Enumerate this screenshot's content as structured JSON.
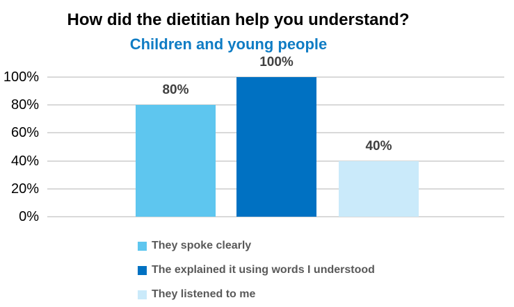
{
  "chart_data": {
    "type": "bar",
    "title": "How did the dietitian help you understand?",
    "subtitle": "Children and young people",
    "categories": [
      "They spoke clearly",
      "The explained it using words I understood",
      "They listened to me"
    ],
    "values": [
      80,
      100,
      40
    ],
    "data_labels": [
      "80%",
      "100%",
      "40%"
    ],
    "bar_colors": [
      "#5EC6EF",
      "#0071C2",
      "#CAEAFA"
    ],
    "y_ticks": [
      "0%",
      "20%",
      "40%",
      "60%",
      "80%",
      "100%"
    ],
    "ylim": [
      0,
      100
    ],
    "grid": true,
    "legend_position": "bottom-left",
    "xlabel": "",
    "ylabel": ""
  },
  "style": {
    "background": "#FFFFFF",
    "title_color": "#000000",
    "subtitle_color": "#0F7CC4",
    "gridline_color": "#D9D9D9",
    "axis_label_color": "#000000",
    "data_label_color": "#404040",
    "legend_label_color": "#595959"
  }
}
